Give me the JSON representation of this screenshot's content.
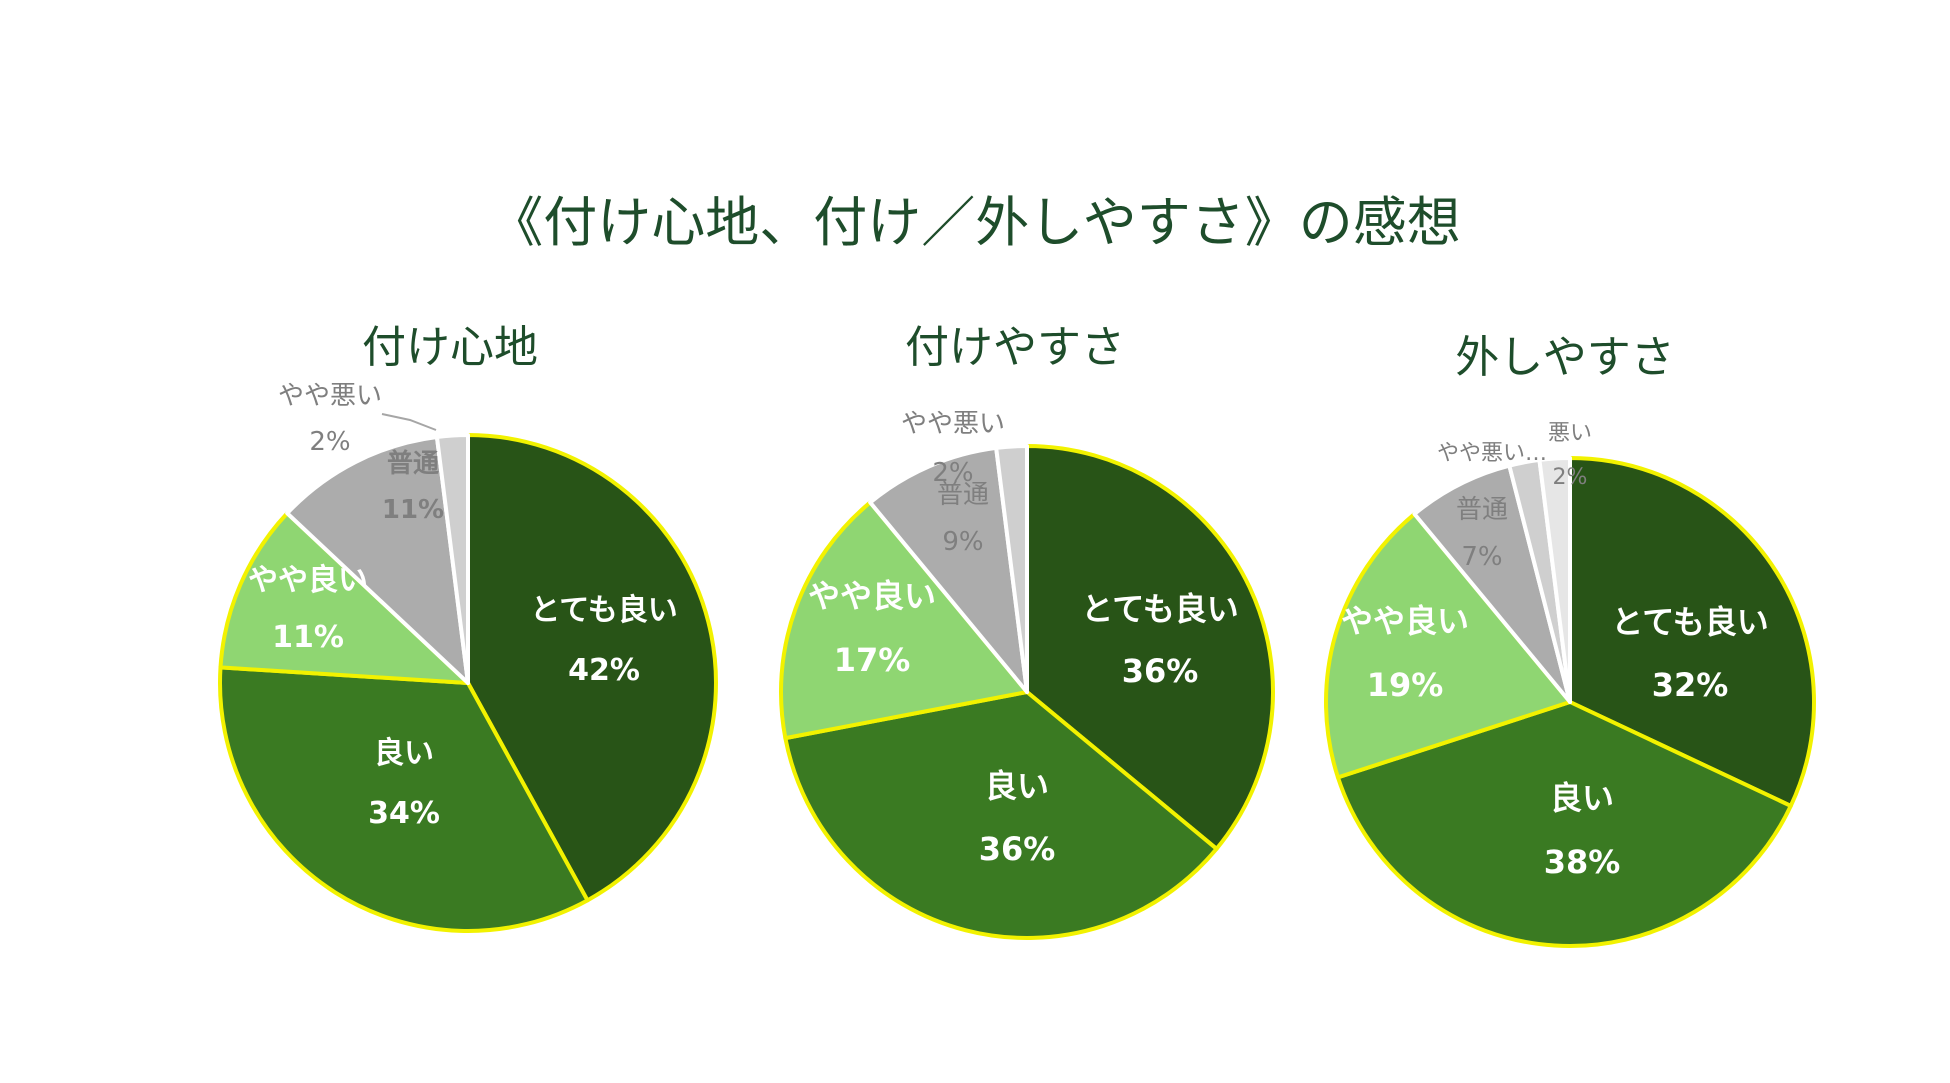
{
  "title": "《付け心地、付け／外しやすさ》の感想",
  "colors": {
    "title_text": "#1e4d2b",
    "pie_border": "#f2f200",
    "very_good": "#285417",
    "good": "#3a7a22",
    "somewhat_good": "#8fd672",
    "normal": "#acacac",
    "somewhat_bad": "#cfcfcf",
    "bad": "#e6e6e6",
    "label_white": "#ffffff",
    "label_gray": "#7f7f7f"
  },
  "chart_data": [
    {
      "type": "pie",
      "title": "付け心地",
      "slices": [
        {
          "label": "とても良い",
          "value_label": "42%",
          "value": 42,
          "color_key": "very_good"
        },
        {
          "label": "良い",
          "value_label": "34%",
          "value": 34,
          "color_key": "good"
        },
        {
          "label": "やや良い",
          "value_label": "11%",
          "value": 11,
          "color_key": "somewhat_good"
        },
        {
          "label": "普通",
          "value_label": "11%",
          "value": 11,
          "color_key": "normal"
        },
        {
          "label": "やや悪い",
          "value_label": "2%",
          "value": 2,
          "color_key": "somewhat_bad"
        }
      ]
    },
    {
      "type": "pie",
      "title": "付けやすさ",
      "slices": [
        {
          "label": "とても良い",
          "value_label": "36%",
          "value": 36,
          "color_key": "very_good"
        },
        {
          "label": "良い",
          "value_label": "36%",
          "value": 36,
          "color_key": "good"
        },
        {
          "label": "やや良い",
          "value_label": "17%",
          "value": 17,
          "color_key": "somewhat_good"
        },
        {
          "label": "普通",
          "value_label": "9%",
          "value": 9,
          "color_key": "normal"
        },
        {
          "label": "やや悪い",
          "value_label": "2%",
          "value": 2,
          "color_key": "somewhat_bad"
        }
      ]
    },
    {
      "type": "pie",
      "title": "外しやすさ",
      "slices": [
        {
          "label": "とても良い",
          "value_label": "32%",
          "value": 32,
          "color_key": "very_good"
        },
        {
          "label": "良い",
          "value_label": "38%",
          "value": 38,
          "color_key": "good"
        },
        {
          "label": "やや良い",
          "value_label": "19%",
          "value": 19,
          "color_key": "somewhat_good"
        },
        {
          "label": "普通",
          "value_label": "7%",
          "value": 7,
          "color_key": "normal"
        },
        {
          "label": "やや悪い…",
          "value_label": "",
          "value": 2,
          "color_key": "somewhat_bad"
        },
        {
          "label": "悪い",
          "value_label": "2%",
          "value": 2,
          "color_key": "bad"
        }
      ]
    }
  ]
}
